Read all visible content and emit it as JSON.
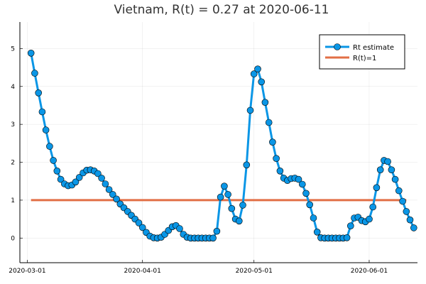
{
  "chart_data": {
    "type": "line",
    "title": "Vietnam, R(t) = 0.27 at 2020-06-11",
    "xlabel": "",
    "ylabel": "",
    "xlim": [
      "2020-02-28",
      "2020-06-14"
    ],
    "ylim": [
      -0.65,
      5.7
    ],
    "grid": true,
    "legend_position": "top-right",
    "x_ticks": [
      "2020-03-01",
      "2020-04-01",
      "2020-05-01",
      "2020-06-01"
    ],
    "y_ticks": [
      0,
      1,
      2,
      3,
      4,
      5
    ],
    "x_start": "2020-03-02",
    "series": [
      {
        "name": "Rt estimate",
        "color": "#0a96e6",
        "marker": "circle",
        "values": [
          4.88,
          4.35,
          3.83,
          3.33,
          2.85,
          2.42,
          2.05,
          1.77,
          1.55,
          1.43,
          1.38,
          1.4,
          1.48,
          1.6,
          1.72,
          1.79,
          1.8,
          1.77,
          1.7,
          1.58,
          1.43,
          1.28,
          1.15,
          1.03,
          0.9,
          0.8,
          0.7,
          0.6,
          0.5,
          0.4,
          0.28,
          0.15,
          0.05,
          0.01,
          0.0,
          0.02,
          0.1,
          0.2,
          0.3,
          0.33,
          0.25,
          0.1,
          0.02,
          0.0,
          0.0,
          0.0,
          0.0,
          0.0,
          0.0,
          0.0,
          0.18,
          1.08,
          1.37,
          1.15,
          0.78,
          0.5,
          0.45,
          0.87,
          1.93,
          3.37,
          4.33,
          4.46,
          4.12,
          3.58,
          3.05,
          2.53,
          2.1,
          1.77,
          1.58,
          1.52,
          1.57,
          1.58,
          1.55,
          1.42,
          1.18,
          0.88,
          0.53,
          0.16,
          0.01,
          0.0,
          0.0,
          0.0,
          0.0,
          0.0,
          0.0,
          0.01,
          0.32,
          0.53,
          0.55,
          0.46,
          0.43,
          0.5,
          0.82,
          1.33,
          1.8,
          2.05,
          2.02,
          1.8,
          1.55,
          1.25,
          0.97,
          0.7,
          0.48,
          0.27
        ]
      },
      {
        "name": "R(t)=1",
        "color": "#e26f46",
        "marker": "none",
        "x": [
          "2020-03-02",
          "2020-06-11"
        ],
        "values": [
          1,
          1
        ]
      }
    ]
  }
}
